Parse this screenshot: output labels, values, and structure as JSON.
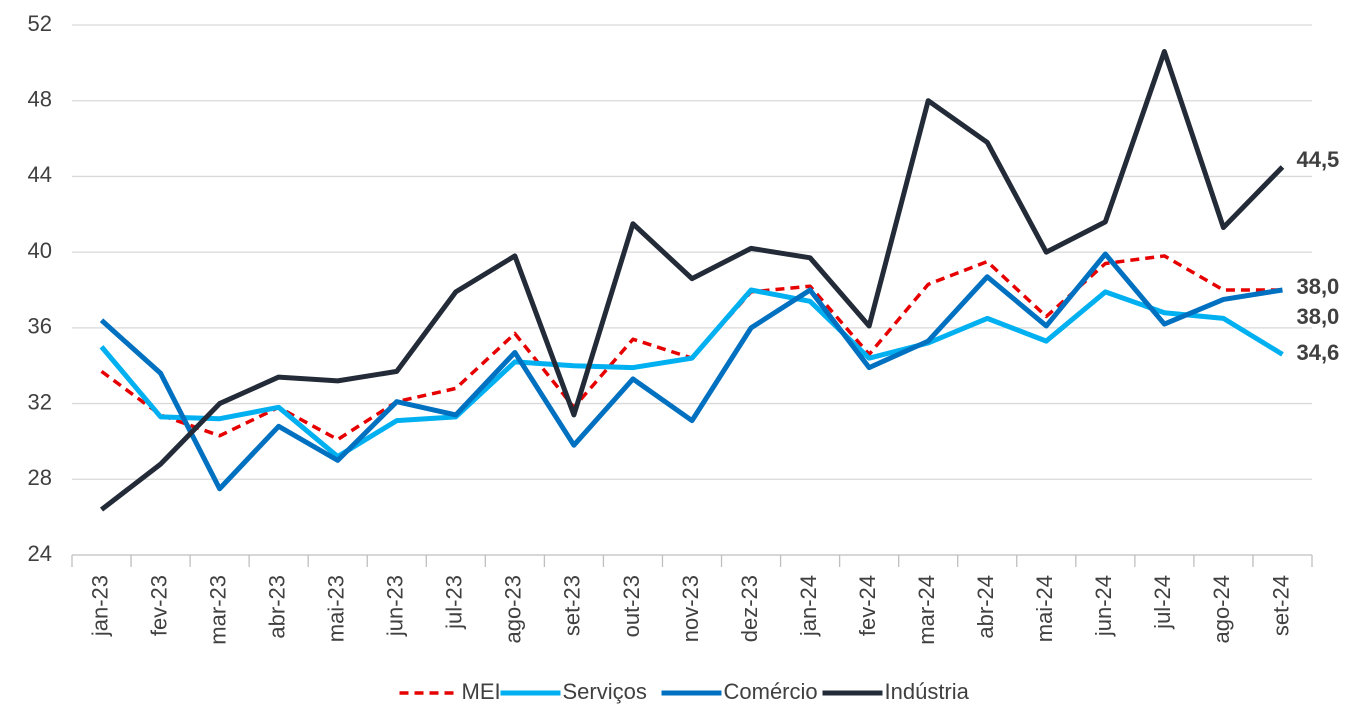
{
  "chart_data": {
    "type": "line",
    "categories": [
      "jan-23",
      "fev-23",
      "mar-23",
      "abr-23",
      "mai-23",
      "jun-23",
      "jul-23",
      "ago-23",
      "set-23",
      "out-23",
      "nov-23",
      "dez-23",
      "jan-24",
      "fev-24",
      "mar-24",
      "abr-24",
      "mai-24",
      "jun-24",
      "jul-24",
      "ago-24",
      "set-24"
    ],
    "ylim": [
      24,
      52
    ],
    "yticks": [
      24,
      28,
      32,
      36,
      40,
      44,
      48,
      52
    ],
    "grid": true,
    "legend": "bottom",
    "series": [
      {
        "name": "MEI",
        "color": "#e60000",
        "dashed": true,
        "values": [
          33.7,
          31.4,
          30.3,
          31.8,
          30.1,
          32.1,
          32.8,
          35.7,
          31.8,
          35.4,
          34.4,
          37.9,
          38.2,
          34.6,
          38.3,
          39.5,
          36.6,
          39.4,
          39.8,
          38.0,
          38.0
        ],
        "value_labels": [
          null,
          null,
          null,
          null,
          null,
          null,
          null,
          null,
          null,
          null,
          null,
          null,
          null,
          null,
          null,
          null,
          null,
          null,
          null,
          null,
          "38,0"
        ]
      },
      {
        "name": "Serviços",
        "color": "#00b0f0",
        "values": [
          35.0,
          31.3,
          31.2,
          31.8,
          29.2,
          31.1,
          31.3,
          34.2,
          34.0,
          33.9,
          34.4,
          38.0,
          37.4,
          34.4,
          35.2,
          36.5,
          35.3,
          37.9,
          36.8,
          36.5,
          34.6
        ],
        "value_labels": [
          null,
          null,
          null,
          null,
          null,
          null,
          null,
          null,
          null,
          null,
          null,
          null,
          null,
          null,
          null,
          null,
          null,
          null,
          null,
          null,
          "34,6"
        ]
      },
      {
        "name": "Comércio",
        "color": "#0070c0",
        "values": [
          36.4,
          33.6,
          27.5,
          30.8,
          29.0,
          32.1,
          31.4,
          34.7,
          29.8,
          33.3,
          31.1,
          36.0,
          38.0,
          33.9,
          35.3,
          38.7,
          36.1,
          39.9,
          36.2,
          37.5,
          38.0
        ],
        "value_labels": [
          null,
          null,
          null,
          null,
          null,
          null,
          null,
          null,
          null,
          null,
          null,
          null,
          null,
          null,
          null,
          null,
          null,
          null,
          null,
          null,
          "38,0"
        ]
      },
      {
        "name": "Indústria",
        "color": "#232b38",
        "values": [
          26.4,
          28.8,
          32.0,
          33.4,
          33.2,
          33.7,
          37.9,
          39.8,
          31.4,
          41.5,
          38.6,
          40.2,
          39.7,
          36.1,
          48.0,
          45.8,
          40.0,
          41.6,
          50.6,
          41.3,
          44.5
        ],
        "value_labels": [
          null,
          null,
          null,
          null,
          null,
          null,
          null,
          null,
          null,
          null,
          null,
          null,
          null,
          null,
          null,
          null,
          null,
          null,
          null,
          null,
          "44,5"
        ]
      }
    ]
  }
}
